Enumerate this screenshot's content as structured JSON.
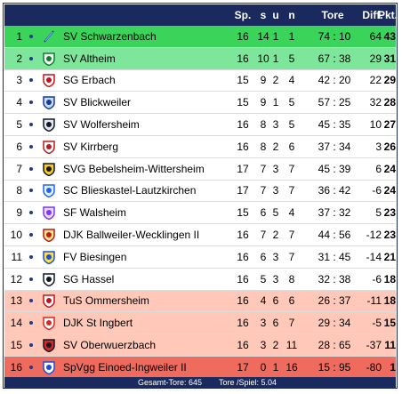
{
  "header": {
    "sp": "Sp.",
    "s": "s",
    "u": "u",
    "n": "n",
    "tore": "Tore",
    "diff": "Diff.",
    "pkt": "Pkt."
  },
  "colors": {
    "header_bg": "#1b2a5e",
    "promotion": "#3bd45b",
    "qualification": "#7ee69b",
    "relegation_zone": "#ffc8b8",
    "relegation": "#ef6b5e"
  },
  "rows": [
    {
      "rank": "1",
      "team": "SV Schwarzenbach",
      "sp": "16",
      "s": "14",
      "u": "1",
      "n": "1",
      "tf": "74",
      "ta": "10",
      "diff": "64",
      "pkt": "43",
      "logo": "pennant-icon"
    },
    {
      "rank": "2",
      "team": "SV Altheim",
      "sp": "16",
      "s": "10",
      "u": "1",
      "n": "5",
      "tf": "67",
      "ta": "38",
      "diff": "29",
      "pkt": "31",
      "logo": "club-crest-icon"
    },
    {
      "rank": "3",
      "team": "SG Erbach",
      "sp": "15",
      "s": "9",
      "u": "2",
      "n": "4",
      "tf": "42",
      "ta": "20",
      "diff": "22",
      "pkt": "29",
      "logo": "club-crest-icon"
    },
    {
      "rank": "4",
      "team": "SV Blickweiler",
      "sp": "15",
      "s": "9",
      "u": "1",
      "n": "5",
      "tf": "57",
      "ta": "25",
      "diff": "32",
      "pkt": "28",
      "logo": "club-crest-icon"
    },
    {
      "rank": "5",
      "team": "SV Wolfersheim",
      "sp": "16",
      "s": "8",
      "u": "3",
      "n": "5",
      "tf": "45",
      "ta": "35",
      "diff": "10",
      "pkt": "27",
      "logo": "club-crest-icon"
    },
    {
      "rank": "6",
      "team": "SV Kirrberg",
      "sp": "16",
      "s": "8",
      "u": "2",
      "n": "6",
      "tf": "37",
      "ta": "34",
      "diff": "3",
      "pkt": "26",
      "logo": "club-crest-icon"
    },
    {
      "rank": "7",
      "team": "SVG Bebelsheim-Wittersheim",
      "sp": "17",
      "s": "7",
      "u": "3",
      "n": "7",
      "tf": "45",
      "ta": "39",
      "diff": "6",
      "pkt": "24",
      "logo": "club-crest-icon"
    },
    {
      "rank": "8",
      "team": "SC Blieskastel-Lautzkirchen",
      "sp": "17",
      "s": "7",
      "u": "3",
      "n": "7",
      "tf": "36",
      "ta": "42",
      "diff": "-6",
      "pkt": "24",
      "logo": "club-crest-icon"
    },
    {
      "rank": "9",
      "team": "SF Walsheim",
      "sp": "15",
      "s": "6",
      "u": "5",
      "n": "4",
      "tf": "37",
      "ta": "32",
      "diff": "5",
      "pkt": "23",
      "logo": "club-crest-icon"
    },
    {
      "rank": "10",
      "team": "DJK Ballweiler-Wecklingen II",
      "sp": "16",
      "s": "7",
      "u": "2",
      "n": "7",
      "tf": "44",
      "ta": "56",
      "diff": "-12",
      "pkt": "23",
      "logo": "club-crest-icon"
    },
    {
      "rank": "11",
      "team": "FV Biesingen",
      "sp": "16",
      "s": "6",
      "u": "3",
      "n": "7",
      "tf": "31",
      "ta": "45",
      "diff": "-14",
      "pkt": "21",
      "logo": "club-crest-icon"
    },
    {
      "rank": "12",
      "team": "SG Hassel",
      "sp": "16",
      "s": "5",
      "u": "3",
      "n": "8",
      "tf": "32",
      "ta": "38",
      "diff": "-6",
      "pkt": "18",
      "logo": "club-crest-icon"
    },
    {
      "rank": "13",
      "team": "TuS Ommersheim",
      "sp": "16",
      "s": "4",
      "u": "6",
      "n": "6",
      "tf": "26",
      "ta": "37",
      "diff": "-11",
      "pkt": "18",
      "logo": "club-crest-icon"
    },
    {
      "rank": "14",
      "team": "DJK St Ingbert",
      "sp": "16",
      "s": "3",
      "u": "6",
      "n": "7",
      "tf": "29",
      "ta": "34",
      "diff": "-5",
      "pkt": "15",
      "logo": "club-crest-icon"
    },
    {
      "rank": "15",
      "team": "SV Oberwuerzbach",
      "sp": "16",
      "s": "3",
      "u": "2",
      "n": "11",
      "tf": "28",
      "ta": "65",
      "diff": "-37",
      "pkt": "11",
      "logo": "club-crest-icon"
    },
    {
      "rank": "16",
      "team": "SpVgg Einoed-Ingweiler II",
      "sp": "17",
      "s": "0",
      "u": "1",
      "n": "16",
      "tf": "15",
      "ta": "95",
      "diff": "-80",
      "pkt": "1",
      "logo": "club-crest-icon"
    }
  ],
  "footer": {
    "total_goals": "Gesamt-Tore: 645",
    "goals_per_game": "Tore /Spiel: 5.04"
  }
}
